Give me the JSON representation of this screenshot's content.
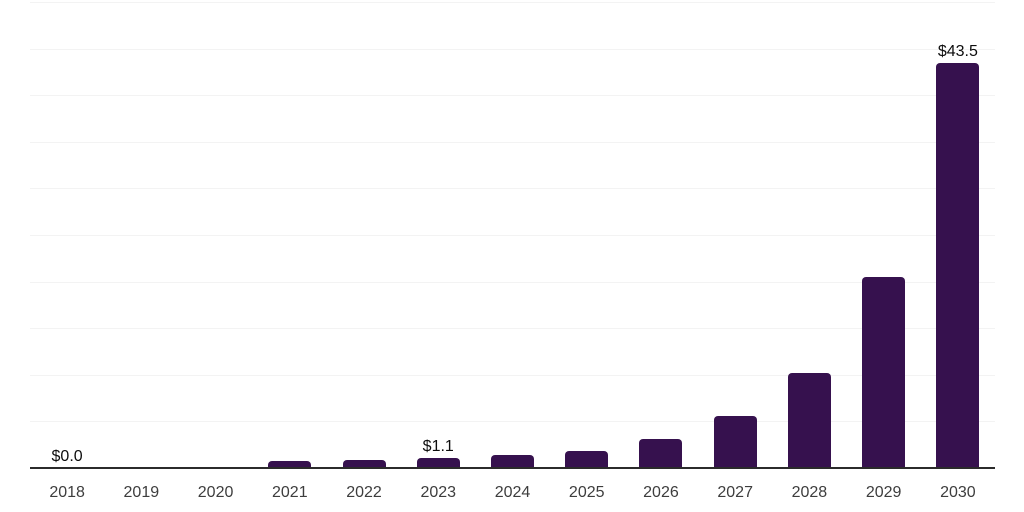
{
  "chart_data": {
    "type": "bar",
    "title": "",
    "xlabel": "",
    "ylabel": "",
    "categories": [
      "2018",
      "2019",
      "2020",
      "2021",
      "2022",
      "2023",
      "2024",
      "2025",
      "2026",
      "2027",
      "2028",
      "2029",
      "2030"
    ],
    "values": [
      0.0,
      0.0,
      0.0,
      0.7,
      0.9,
      1.1,
      1.4,
      1.8,
      3.1,
      5.6,
      10.2,
      20.5,
      43.5
    ],
    "data_labels": [
      "$0.0",
      "",
      "",
      "",
      "",
      "$1.1",
      "",
      "",
      "",
      "",
      "",
      "",
      "$43.5"
    ],
    "ylim": [
      0,
      50
    ],
    "gridline_step": 5,
    "grid": true,
    "legend": false,
    "colors": {
      "bar": "#36114E",
      "axis": "#2B2B2B",
      "gridline": "#F3F3F3",
      "tick_label": "#3D3D3D",
      "value_label": "#0D0D0D",
      "background": "#FFFFFF"
    }
  }
}
